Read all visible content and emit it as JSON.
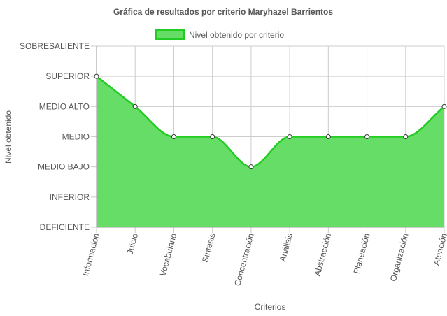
{
  "chart_data": {
    "type": "area",
    "title": "Gráfica de resultados por criterio Maryhazel Barrientos",
    "xlabel": "Criterios",
    "ylabel": "Nivel obtenido",
    "levels": [
      "DEFICIENTE",
      "INFERIOR",
      "MEDIO BAJO",
      "MEDIO",
      "MEDIO ALTO",
      "SUPERIOR",
      "SOBRESALIENTE"
    ],
    "categories": [
      "Información",
      "Juicio",
      "Vocabulario",
      "Síntesis",
      "Concentración",
      "Análisis",
      "Abstracción",
      "Planeación",
      "Organización",
      "Atención"
    ],
    "series": [
      {
        "name": "Nivel obtenido por criterio",
        "values": [
          5,
          4,
          3,
          3,
          2,
          3,
          3,
          3,
          3,
          4
        ]
      }
    ],
    "ylim": [
      0,
      6
    ],
    "grid": true,
    "legend_position": "top",
    "colors": {
      "fill": "#66dd66",
      "stroke": "#22cc22",
      "grid": "#cccccc",
      "point_fill": "#ffffff",
      "point_stroke": "#333333"
    }
  }
}
